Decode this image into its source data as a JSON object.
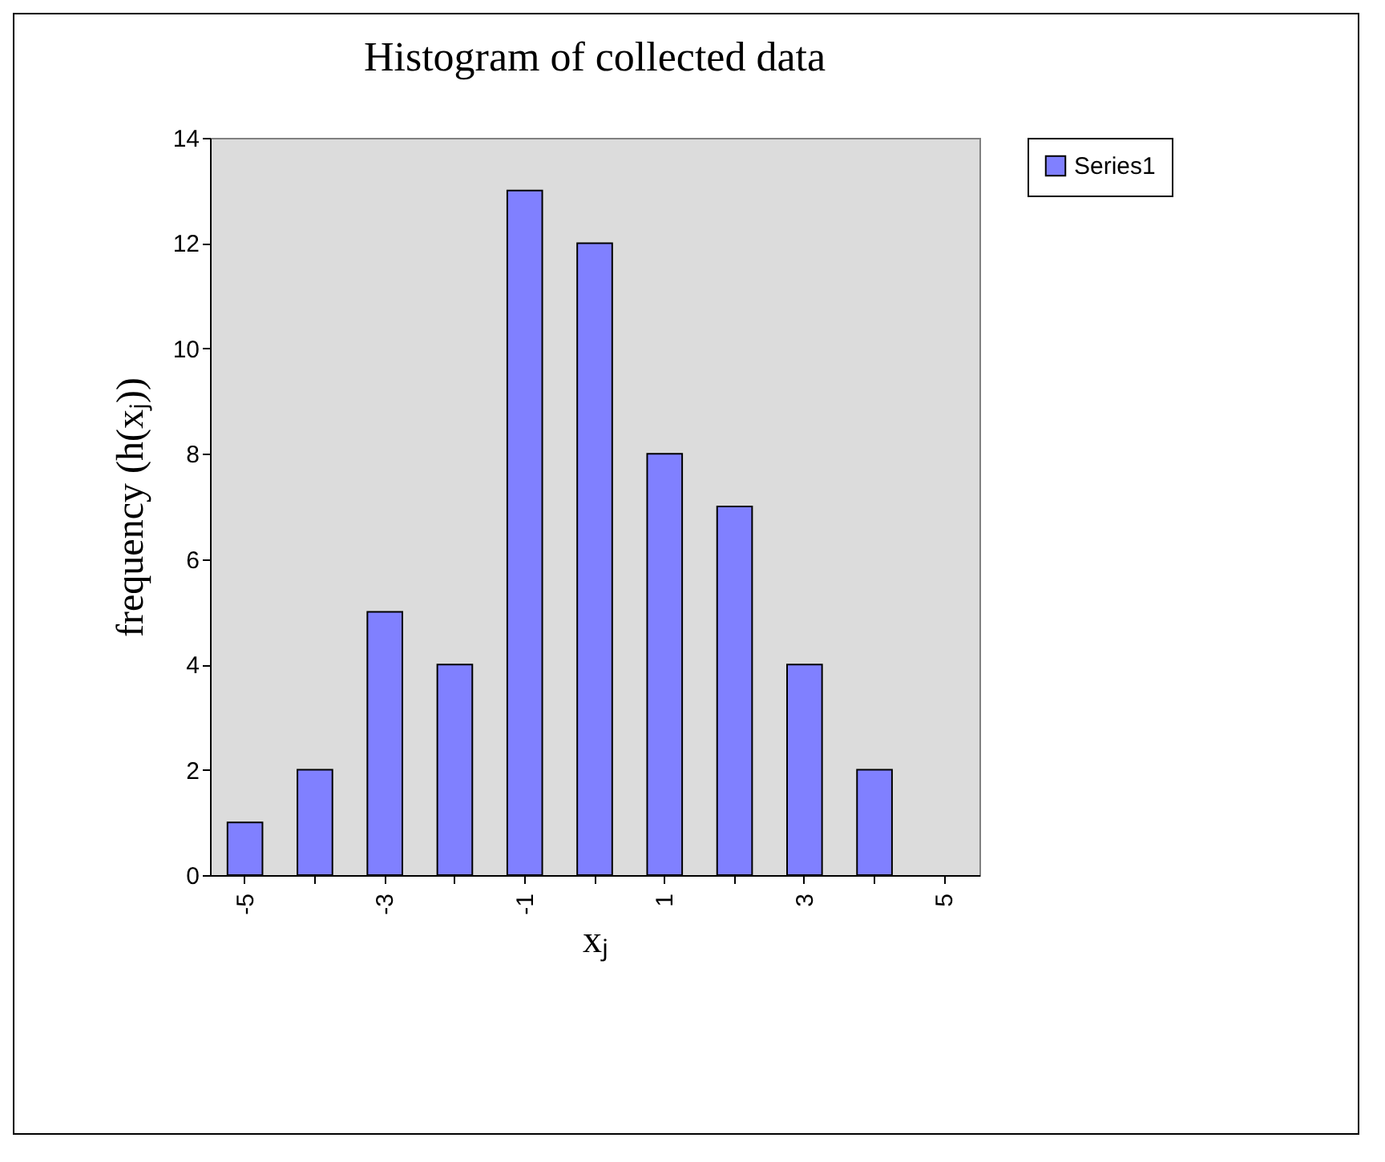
{
  "chart_data": {
    "type": "bar",
    "title": "Histogram of collected data",
    "xlabel": "xⱼ",
    "ylabel": "frequency (h(xⱼ))",
    "categories": [
      "-5",
      null,
      "-3",
      null,
      "-1",
      null,
      "1",
      null,
      "3",
      null,
      "5"
    ],
    "series": [
      {
        "name": "Series1",
        "color": "#8080ff",
        "values": [
          1,
          2,
          5,
          4,
          13,
          12,
          8,
          7,
          4,
          2,
          null
        ]
      }
    ],
    "ylim": [
      0,
      14
    ],
    "yticks": [
      0,
      2,
      4,
      6,
      8,
      10,
      12,
      14
    ],
    "grid": false,
    "legend": "right"
  }
}
